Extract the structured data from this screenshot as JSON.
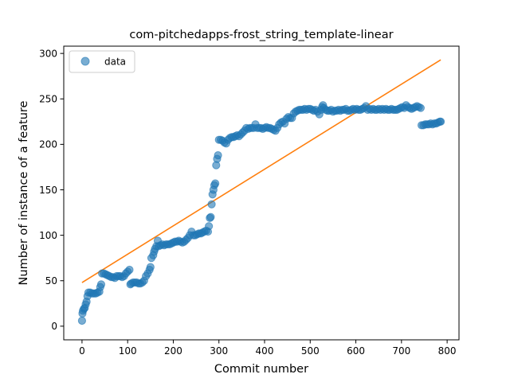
{
  "chart_data": {
    "type": "scatter",
    "title": "com-pitchedapps-frost_string_template-linear",
    "xlabel": "Commit number",
    "ylabel": "Number of instance of a feature",
    "xlim": [
      -40,
      826
    ],
    "ylim": [
      -15,
      308
    ],
    "xticks": [
      0,
      100,
      200,
      300,
      400,
      500,
      600,
      700,
      800
    ],
    "yticks": [
      0,
      50,
      100,
      150,
      200,
      250,
      300
    ],
    "grid": false,
    "legend": {
      "placement": "top-left",
      "entries": [
        {
          "label": "data",
          "color": "#1f77b4"
        }
      ]
    },
    "colors": {
      "scatter": "#1f77b4",
      "fit": "#ff7f0e"
    },
    "series": [
      {
        "name": "data",
        "kind": "scatter",
        "points": [
          [
            0,
            6
          ],
          [
            1,
            14
          ],
          [
            2,
            17
          ],
          [
            4,
            19
          ],
          [
            6,
            20
          ],
          [
            8,
            24
          ],
          [
            10,
            27
          ],
          [
            12,
            33
          ],
          [
            14,
            37
          ],
          [
            18,
            37
          ],
          [
            22,
            36
          ],
          [
            26,
            36
          ],
          [
            30,
            36
          ],
          [
            34,
            37
          ],
          [
            38,
            38
          ],
          [
            40,
            43
          ],
          [
            42,
            46
          ],
          [
            44,
            58
          ],
          [
            48,
            58
          ],
          [
            52,
            57
          ],
          [
            56,
            56
          ],
          [
            60,
            55
          ],
          [
            64,
            54
          ],
          [
            68,
            54
          ],
          [
            72,
            53
          ],
          [
            76,
            55
          ],
          [
            80,
            55
          ],
          [
            84,
            55
          ],
          [
            88,
            54
          ],
          [
            92,
            55
          ],
          [
            96,
            58
          ],
          [
            100,
            60
          ],
          [
            104,
            62
          ],
          [
            106,
            46
          ],
          [
            108,
            47
          ],
          [
            112,
            48
          ],
          [
            116,
            48
          ],
          [
            120,
            48
          ],
          [
            124,
            47
          ],
          [
            128,
            47
          ],
          [
            132,
            48
          ],
          [
            136,
            50
          ],
          [
            140,
            55
          ],
          [
            144,
            58
          ],
          [
            148,
            62
          ],
          [
            150,
            65
          ],
          [
            152,
            75
          ],
          [
            156,
            78
          ],
          [
            158,
            82
          ],
          [
            160,
            85
          ],
          [
            163,
            88
          ],
          [
            166,
            94
          ],
          [
            168,
            88
          ],
          [
            172,
            89
          ],
          [
            176,
            90
          ],
          [
            180,
            89
          ],
          [
            184,
            90
          ],
          [
            188,
            90
          ],
          [
            192,
            90
          ],
          [
            196,
            91
          ],
          [
            200,
            92
          ],
          [
            204,
            93
          ],
          [
            208,
            93
          ],
          [
            212,
            94
          ],
          [
            216,
            93
          ],
          [
            220,
            92
          ],
          [
            224,
            93
          ],
          [
            228,
            95
          ],
          [
            232,
            97
          ],
          [
            236,
            100
          ],
          [
            240,
            104
          ],
          [
            244,
            100
          ],
          [
            248,
            100
          ],
          [
            252,
            101
          ],
          [
            256,
            102
          ],
          [
            260,
            102
          ],
          [
            264,
            103
          ],
          [
            268,
            104
          ],
          [
            272,
            105
          ],
          [
            276,
            104
          ],
          [
            278,
            110
          ],
          [
            280,
            119
          ],
          [
            282,
            120
          ],
          [
            284,
            134
          ],
          [
            286,
            145
          ],
          [
            288,
            150
          ],
          [
            290,
            155
          ],
          [
            292,
            157
          ],
          [
            294,
            177
          ],
          [
            296,
            184
          ],
          [
            298,
            188
          ],
          [
            300,
            205
          ],
          [
            304,
            205
          ],
          [
            308,
            204
          ],
          [
            312,
            202
          ],
          [
            316,
            201
          ],
          [
            320,
            205
          ],
          [
            324,
            207
          ],
          [
            328,
            208
          ],
          [
            332,
            208
          ],
          [
            336,
            209
          ],
          [
            340,
            210
          ],
          [
            344,
            209
          ],
          [
            348,
            211
          ],
          [
            352,
            213
          ],
          [
            356,
            215
          ],
          [
            360,
            218
          ],
          [
            364,
            217
          ],
          [
            368,
            218
          ],
          [
            372,
            218
          ],
          [
            376,
            218
          ],
          [
            380,
            222
          ],
          [
            384,
            218
          ],
          [
            388,
            218
          ],
          [
            392,
            218
          ],
          [
            396,
            217
          ],
          [
            400,
            218
          ],
          [
            404,
            219
          ],
          [
            408,
            218
          ],
          [
            412,
            218
          ],
          [
            416,
            217
          ],
          [
            420,
            216
          ],
          [
            424,
            215
          ],
          [
            428,
            218
          ],
          [
            432,
            222
          ],
          [
            436,
            224
          ],
          [
            440,
            225
          ],
          [
            444,
            223
          ],
          [
            448,
            228
          ],
          [
            452,
            230
          ],
          [
            456,
            229
          ],
          [
            460,
            229
          ],
          [
            464,
            234
          ],
          [
            468,
            236
          ],
          [
            472,
            237
          ],
          [
            476,
            238
          ],
          [
            480,
            238
          ],
          [
            484,
            238
          ],
          [
            488,
            239
          ],
          [
            492,
            238
          ],
          [
            496,
            239
          ],
          [
            500,
            239
          ],
          [
            504,
            238
          ],
          [
            508,
            237
          ],
          [
            512,
            238
          ],
          [
            516,
            236
          ],
          [
            520,
            233
          ],
          [
            524,
            238
          ],
          [
            526,
            241
          ],
          [
            528,
            243
          ],
          [
            530,
            240
          ],
          [
            534,
            238
          ],
          [
            538,
            237
          ],
          [
            542,
            237
          ],
          [
            546,
            238
          ],
          [
            550,
            236
          ],
          [
            554,
            237
          ],
          [
            558,
            237
          ],
          [
            562,
            238
          ],
          [
            566,
            237
          ],
          [
            570,
            238
          ],
          [
            574,
            238
          ],
          [
            578,
            239
          ],
          [
            582,
            237
          ],
          [
            586,
            237
          ],
          [
            590,
            238
          ],
          [
            594,
            239
          ],
          [
            598,
            238
          ],
          [
            602,
            239
          ],
          [
            606,
            238
          ],
          [
            610,
            238
          ],
          [
            614,
            239
          ],
          [
            618,
            240
          ],
          [
            622,
            242
          ],
          [
            626,
            238
          ],
          [
            630,
            239
          ],
          [
            634,
            238
          ],
          [
            638,
            239
          ],
          [
            642,
            238
          ],
          [
            646,
            238
          ],
          [
            650,
            239
          ],
          [
            654,
            238
          ],
          [
            658,
            239
          ],
          [
            662,
            238
          ],
          [
            666,
            239
          ],
          [
            670,
            238
          ],
          [
            674,
            238
          ],
          [
            678,
            239
          ],
          [
            682,
            238
          ],
          [
            686,
            238
          ],
          [
            690,
            238
          ],
          [
            694,
            239
          ],
          [
            698,
            240
          ],
          [
            702,
            241
          ],
          [
            706,
            240
          ],
          [
            710,
            243
          ],
          [
            714,
            241
          ],
          [
            718,
            240
          ],
          [
            722,
            239
          ],
          [
            726,
            240
          ],
          [
            730,
            241
          ],
          [
            734,
            242
          ],
          [
            738,
            241
          ],
          [
            742,
            240
          ],
          [
            744,
            221
          ],
          [
            748,
            221
          ],
          [
            752,
            222
          ],
          [
            756,
            222
          ],
          [
            760,
            222
          ],
          [
            764,
            223
          ],
          [
            768,
            222
          ],
          [
            772,
            223
          ],
          [
            776,
            223
          ],
          [
            780,
            224
          ],
          [
            784,
            225
          ],
          [
            786,
            225
          ]
        ]
      },
      {
        "name": "",
        "kind": "line",
        "points": [
          [
            0,
            48
          ],
          [
            786,
            293
          ]
        ]
      }
    ]
  }
}
